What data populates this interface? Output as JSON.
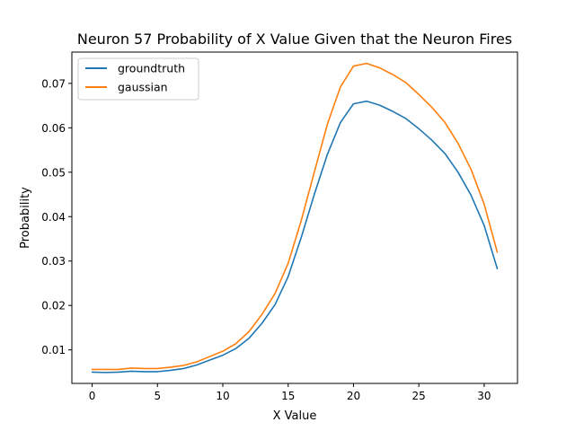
{
  "chart_data": {
    "type": "line",
    "title": "Neuron 57 Probability of X Value Given that the Neuron Fires",
    "xlabel": "X Value",
    "ylabel": "Probability",
    "xlim": [
      -1.55,
      32.55
    ],
    "ylim": [
      0.00245,
      0.07705
    ],
    "xticks": [
      0,
      5,
      10,
      15,
      20,
      25,
      30
    ],
    "yticks": [
      0.01,
      0.02,
      0.03,
      0.04,
      0.05,
      0.06,
      0.07
    ],
    "ytick_labels": [
      "0.01",
      "0.02",
      "0.03",
      "0.04",
      "0.05",
      "0.06",
      "0.07"
    ],
    "grid": false,
    "legend_position": "top-left",
    "x": [
      0,
      1,
      2,
      3,
      4,
      5,
      6,
      7,
      8,
      9,
      10,
      11,
      12,
      13,
      14,
      15,
      16,
      17,
      18,
      19,
      20,
      21,
      22,
      23,
      24,
      25,
      26,
      27,
      28,
      29,
      30,
      31
    ],
    "series": [
      {
        "name": "groundtruth",
        "color": "#1f77b4",
        "values": [
          0.005,
          0.0049,
          0.005,
          0.0052,
          0.0051,
          0.0051,
          0.0054,
          0.0058,
          0.0066,
          0.0077,
          0.0088,
          0.0103,
          0.0126,
          0.016,
          0.0202,
          0.0265,
          0.0353,
          0.045,
          0.054,
          0.0612,
          0.0654,
          0.066,
          0.0651,
          0.0637,
          0.0621,
          0.0598,
          0.0572,
          0.0542,
          0.05,
          0.0448,
          0.038,
          0.0283
        ]
      },
      {
        "name": "gaussian",
        "color": "#ff7f0e",
        "values": [
          0.0056,
          0.0056,
          0.0056,
          0.0059,
          0.0058,
          0.0058,
          0.0061,
          0.0065,
          0.0073,
          0.0085,
          0.0097,
          0.0114,
          0.0141,
          0.018,
          0.0227,
          0.0295,
          0.0391,
          0.05,
          0.0608,
          0.0692,
          0.0739,
          0.0745,
          0.0735,
          0.072,
          0.0702,
          0.0675,
          0.0646,
          0.0612,
          0.0565,
          0.0506,
          0.0428,
          0.032
        ]
      }
    ]
  }
}
